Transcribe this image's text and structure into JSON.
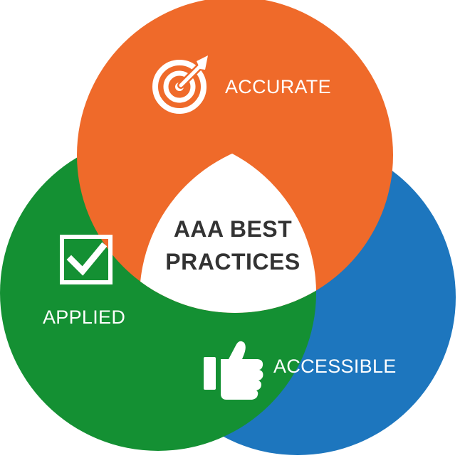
{
  "diagram": {
    "center_lines": [
      "AAA BEST",
      "PRACTICES"
    ],
    "sets": [
      {
        "id": "accurate",
        "label": "ACCURATE",
        "icon": "target-icon",
        "color": "#EF6A2A"
      },
      {
        "id": "applied",
        "label": "APPLIED",
        "icon": "checkbox-icon",
        "color": "#149033"
      },
      {
        "id": "accessible",
        "label": "ACCESSIBLE",
        "icon": "thumbs-up-icon",
        "color": "#1D76BE"
      }
    ],
    "center_color": "#ffffff",
    "text_color_light": "#ffffff",
    "text_color_dark": "#333333"
  }
}
